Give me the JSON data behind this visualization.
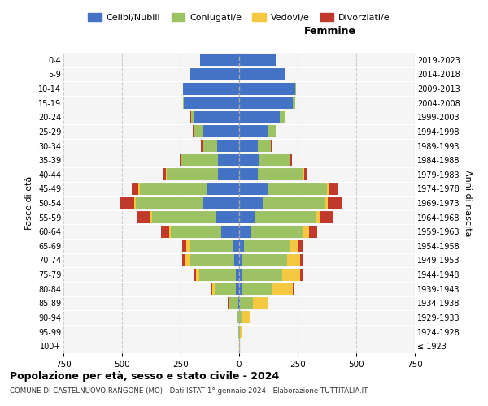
{
  "age_groups": [
    "100+",
    "95-99",
    "90-94",
    "85-89",
    "80-84",
    "75-79",
    "70-74",
    "65-69",
    "60-64",
    "55-59",
    "50-54",
    "45-49",
    "40-44",
    "35-39",
    "30-34",
    "25-29",
    "20-24",
    "15-19",
    "10-14",
    "5-9",
    "0-4"
  ],
  "birth_years": [
    "≤ 1923",
    "1924-1928",
    "1929-1933",
    "1934-1938",
    "1939-1943",
    "1944-1948",
    "1949-1953",
    "1954-1958",
    "1959-1963",
    "1964-1968",
    "1969-1973",
    "1974-1978",
    "1979-1983",
    "1984-1988",
    "1989-1993",
    "1994-1998",
    "1999-2003",
    "2004-2008",
    "2009-2013",
    "2014-2018",
    "2019-2023"
  ],
  "male": {
    "celibi": [
      0,
      0,
      0,
      5,
      15,
      15,
      20,
      25,
      75,
      100,
      155,
      140,
      90,
      90,
      95,
      155,
      190,
      235,
      240,
      210,
      165
    ],
    "coniugati": [
      0,
      2,
      8,
      35,
      90,
      155,
      190,
      185,
      215,
      270,
      285,
      285,
      220,
      155,
      60,
      40,
      15,
      5,
      0,
      0,
      0
    ],
    "vedovi": [
      0,
      0,
      3,
      5,
      10,
      15,
      20,
      15,
      10,
      10,
      8,
      5,
      3,
      2,
      2,
      0,
      0,
      0,
      0,
      0,
      0
    ],
    "divorziati": [
      0,
      0,
      0,
      2,
      3,
      5,
      12,
      18,
      35,
      55,
      60,
      30,
      12,
      8,
      5,
      2,
      2,
      0,
      0,
      0,
      0
    ]
  },
  "female": {
    "nubili": [
      0,
      0,
      0,
      5,
      10,
      10,
      15,
      20,
      50,
      65,
      100,
      120,
      80,
      85,
      80,
      120,
      175,
      230,
      240,
      195,
      155
    ],
    "coniugate": [
      0,
      3,
      15,
      55,
      130,
      175,
      190,
      195,
      225,
      260,
      265,
      255,
      195,
      130,
      55,
      35,
      20,
      10,
      2,
      0,
      0
    ],
    "vedove": [
      2,
      8,
      30,
      60,
      90,
      75,
      55,
      40,
      25,
      20,
      12,
      8,
      4,
      2,
      2,
      0,
      0,
      0,
      0,
      0,
      0
    ],
    "divorziate": [
      0,
      0,
      0,
      3,
      5,
      10,
      15,
      18,
      35,
      55,
      65,
      40,
      10,
      8,
      5,
      2,
      0,
      0,
      0,
      0,
      0
    ]
  },
  "colors": {
    "celibi": "#4472C4",
    "coniugati": "#9DC264",
    "vedovi": "#F5C842",
    "divorziati": "#C0392B"
  },
  "xlim": 750,
  "title": "Popolazione per età, sesso e stato civile - 2024",
  "subtitle": "COMUNE DI CASTELNUOVO RANGONE (MO) - Dati ISTAT 1° gennaio 2024 - Elaborazione TUTTITALIA.IT",
  "xlabel_right": "Femmine",
  "ylabel": "Fasce di età",
  "ylabel_right": "Anni di nascita",
  "legend_labels": [
    "Celibi/Nubili",
    "Coniugati/e",
    "Vedovi/e",
    "Divorziati/e"
  ],
  "bg_color": "#ffffff",
  "plot_bg_color": "#f5f5f5",
  "grid_color": "#cccccc"
}
